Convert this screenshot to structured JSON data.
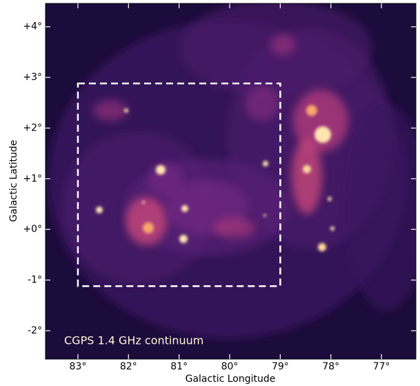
{
  "chart_data": {
    "type": "image",
    "annotation": "CGPS 1.4 GHz continuum",
    "x_label": "Galactic Longitude",
    "y_label": "Galactic Latitude",
    "xlim": [
      83.64,
      76.32
    ],
    "ylim": [
      -2.56,
      4.46
    ],
    "xticks": [
      {
        "value": 83,
        "label": "83°"
      },
      {
        "value": 82,
        "label": "82°"
      },
      {
        "value": 81,
        "label": "81°"
      },
      {
        "value": 80,
        "label": "80°"
      },
      {
        "value": 79,
        "label": "79°"
      },
      {
        "value": 78,
        "label": "78°"
      },
      {
        "value": 77,
        "label": "77°"
      }
    ],
    "yticks": [
      {
        "value": -2,
        "label": "-2°"
      },
      {
        "value": -1,
        "label": "-1°"
      },
      {
        "value": 0,
        "label": "+0°"
      },
      {
        "value": 1,
        "label": "+1°"
      },
      {
        "value": 2,
        "label": "+2°"
      },
      {
        "value": 3,
        "label": "+3°"
      },
      {
        "value": 4,
        "label": "+4°"
      }
    ],
    "region": {
      "lon": [
        83,
        79
      ],
      "lat": [
        2.88,
        -1.12
      ],
      "color": "#ffffff"
    }
  }
}
